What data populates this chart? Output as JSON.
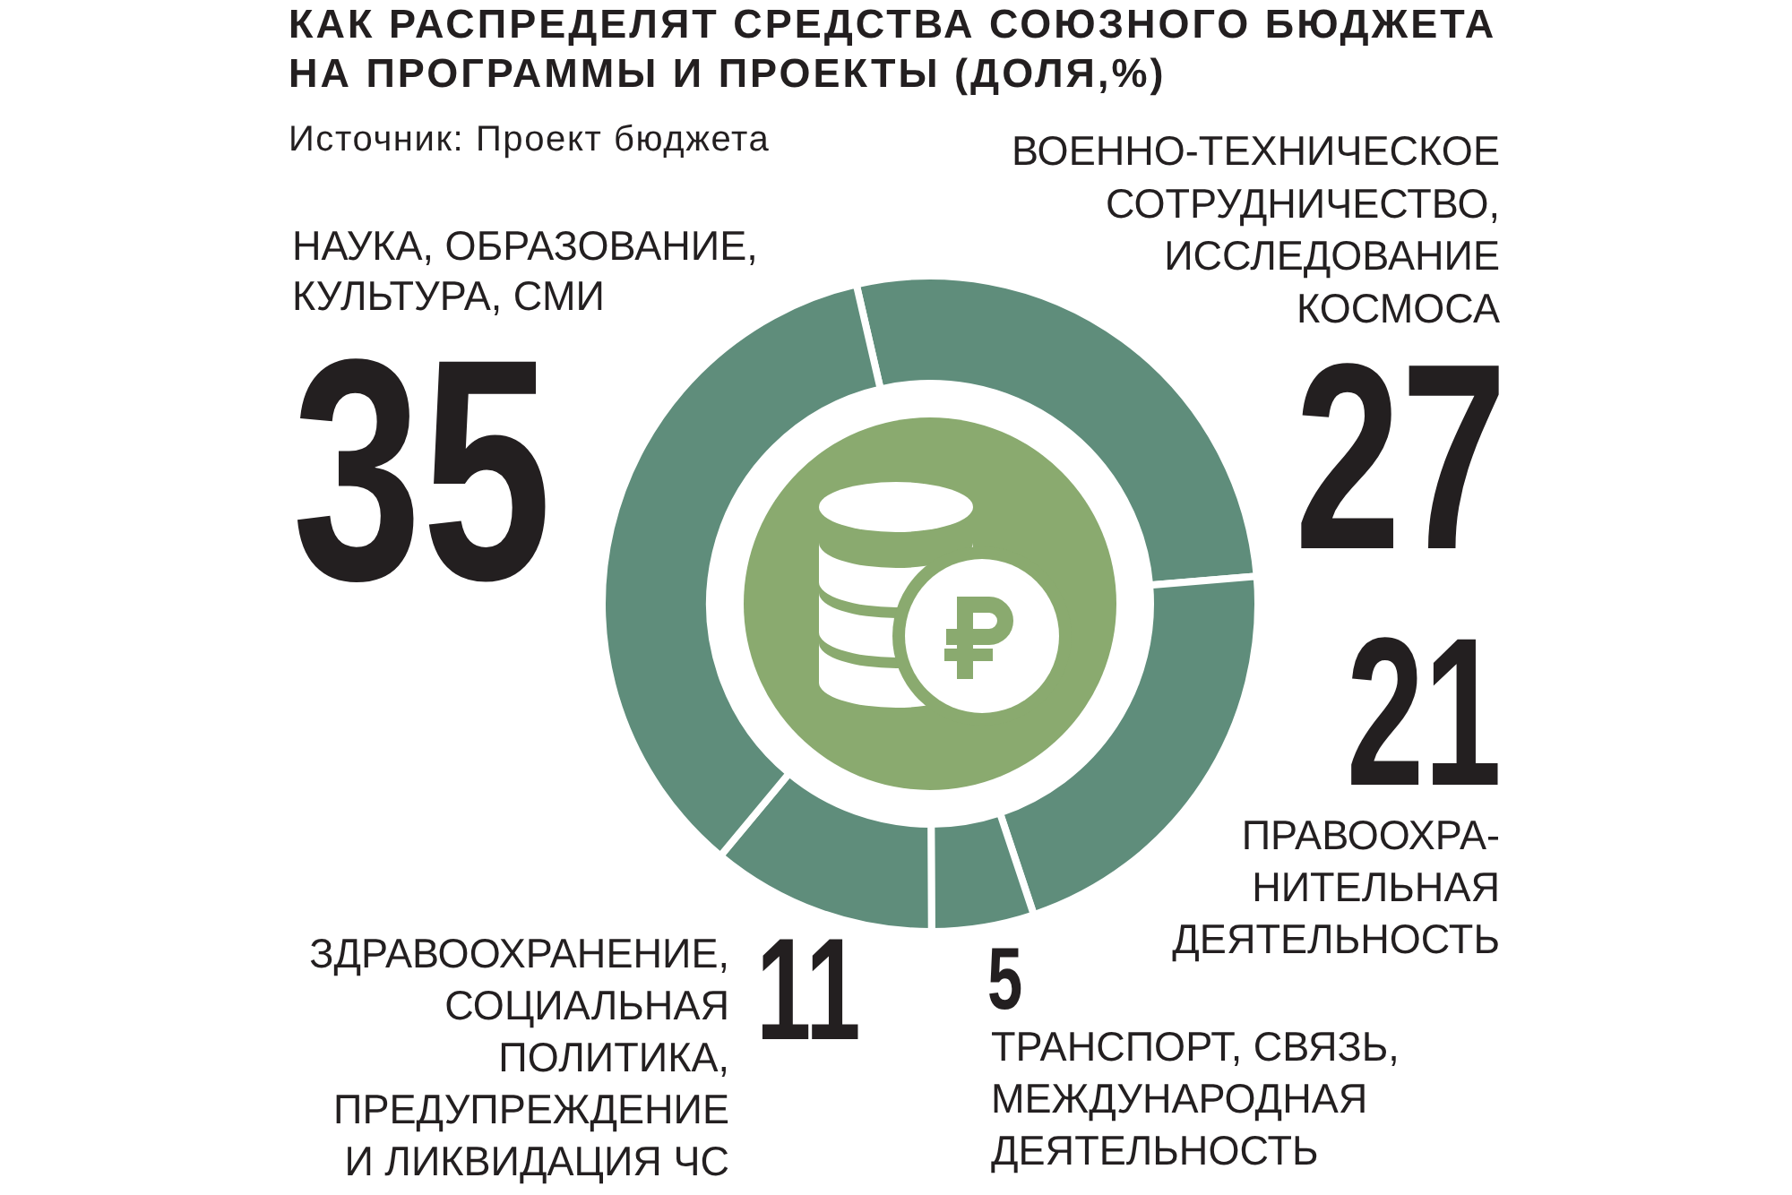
{
  "chart_data": {
    "type": "donut",
    "title": "КАК РАСПРЕДЕЛЯТ СРЕДСТВА СОЮЗНОГО БЮДЖЕТА\nНА ПРОГРАММЫ И ПРОЕКТЫ (ДОЛЯ,%)",
    "annotations": [
      "Источник: Проект бюджета"
    ],
    "categories": [
      "ВОЕННО-ТЕХНИЧЕСКОЕ\nСОТРУДНИЧЕСТВО,\nИССЛЕДОВАНИЕ\nКОСМОСА",
      "ПРАВООХРА-\nНИТЕЛЬНАЯ\nДЕЯТЕЛЬНОСТЬ",
      "ТРАНСПОРТ, СВЯЗЬ,\nМЕЖДУНАРОДНАЯ\nДЕЯТЕЛЬНОСТЬ",
      "ЗДРАВООХРАНЕНИЕ,\nСОЦИАЛЬНАЯ\nПОЛИТИКА,\nПРЕДУПРЕЖДЕНИЕ\nИ ЛИКВИДАЦИЯ ЧС",
      "НАУКА, ОБРАЗОВАНИЕ,\nКУЛЬТУРА, СМИ"
    ],
    "values": [
      27,
      21,
      5,
      11,
      35
    ],
    "colors": [
      "#5f8d7b",
      "#5f8d7b",
      "#5f8d7b",
      "#5f8d7b",
      "#5f8d7b"
    ],
    "data_labels": true
  }
}
